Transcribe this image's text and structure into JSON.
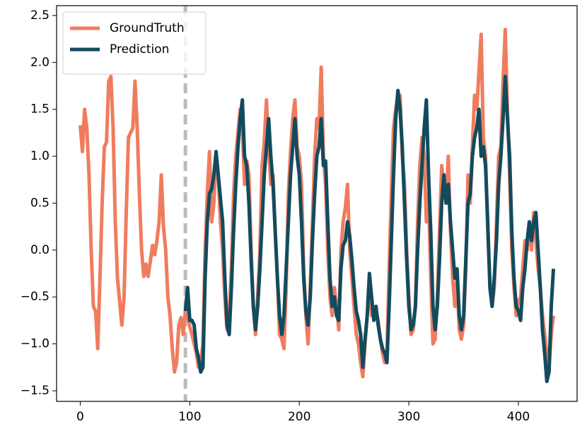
{
  "chart_data": {
    "type": "line",
    "x": [
      0,
      2,
      4,
      6,
      8,
      10,
      12,
      14,
      16,
      18,
      20,
      22,
      24,
      26,
      28,
      30,
      32,
      34,
      36,
      38,
      40,
      42,
      44,
      46,
      48,
      50,
      52,
      54,
      56,
      58,
      60,
      62,
      64,
      66,
      68,
      70,
      72,
      74,
      76,
      78,
      80,
      82,
      84,
      86,
      88,
      90,
      92,
      94,
      96,
      98,
      100,
      102,
      104,
      106,
      108,
      110,
      112,
      114,
      116,
      118,
      120,
      122,
      124,
      126,
      128,
      130,
      132,
      134,
      136,
      138,
      140,
      142,
      144,
      146,
      148,
      150,
      152,
      154,
      156,
      158,
      160,
      162,
      164,
      166,
      168,
      170,
      172,
      174,
      176,
      178,
      180,
      182,
      184,
      186,
      188,
      190,
      192,
      194,
      196,
      198,
      200,
      202,
      204,
      206,
      208,
      210,
      212,
      214,
      216,
      218,
      220,
      222,
      224,
      226,
      228,
      230,
      232,
      234,
      236,
      238,
      240,
      242,
      244,
      246,
      248,
      250,
      252,
      254,
      256,
      258,
      260,
      262,
      264,
      266,
      268,
      270,
      272,
      274,
      276,
      278,
      280,
      282,
      284,
      286,
      288,
      290,
      292,
      294,
      296,
      298,
      300,
      302,
      304,
      306,
      308,
      310,
      312,
      314,
      316,
      318,
      320,
      322,
      324,
      326,
      328,
      330,
      332,
      334,
      336,
      338,
      340,
      342,
      344,
      346,
      348,
      350,
      352,
      354,
      356,
      358,
      360,
      362,
      364,
      366,
      368,
      370,
      372,
      374,
      376,
      378,
      380,
      382,
      384,
      386,
      388,
      390,
      392,
      394,
      396,
      398,
      400,
      402,
      404,
      406,
      408,
      410,
      412,
      414,
      416,
      418,
      420,
      422,
      424,
      426,
      428,
      430,
      432
    ],
    "series": [
      {
        "name": "GroundTruth",
        "color": "#f07c5e",
        "values": [
          1.33,
          1.05,
          1.5,
          1.3,
          0.8,
          0.0,
          -0.6,
          -0.65,
          -1.05,
          -0.3,
          0.5,
          1.1,
          1.15,
          1.8,
          1.85,
          1.3,
          0.3,
          -0.3,
          -0.55,
          -0.8,
          -0.5,
          0.4,
          1.2,
          1.25,
          1.3,
          1.8,
          1.3,
          0.6,
          0.0,
          -0.28,
          -0.15,
          -0.28,
          -0.12,
          0.05,
          -0.05,
          0.1,
          0.3,
          0.8,
          0.25,
          0.0,
          -0.5,
          -0.7,
          -1.05,
          -1.3,
          -1.2,
          -0.8,
          -0.72,
          -0.9,
          -0.65,
          -0.7,
          -0.82,
          -0.9,
          -1.0,
          -1.1,
          -1.25,
          -1.2,
          -1.0,
          0.0,
          0.6,
          1.05,
          0.3,
          0.5,
          1.0,
          0.8,
          0.3,
          0.0,
          -0.5,
          -0.85,
          -0.7,
          -0.2,
          0.6,
          1.0,
          1.25,
          1.5,
          1.3,
          0.7,
          0.95,
          0.8,
          0.0,
          -0.6,
          -0.9,
          -0.5,
          0.0,
          0.9,
          1.15,
          1.6,
          1.1,
          0.7,
          0.8,
          0.2,
          -0.3,
          -0.9,
          -0.95,
          -1.05,
          -0.4,
          0.6,
          1.05,
          1.4,
          1.6,
          1.1,
          1.0,
          0.7,
          -0.2,
          -0.7,
          -1.0,
          -0.4,
          0.3,
          1.0,
          1.4,
          1.3,
          1.95,
          1.0,
          0.7,
          0.0,
          -0.5,
          -0.7,
          -0.4,
          -0.6,
          -0.85,
          0.0,
          0.3,
          0.45,
          0.7,
          0.0,
          -0.3,
          -0.6,
          -0.9,
          -1.0,
          -1.2,
          -1.35,
          -1.0,
          -0.7,
          -0.3,
          -0.7,
          -0.7,
          -0.65,
          -0.75,
          -0.95,
          -1.1,
          -1.2,
          -1.1,
          -0.2,
          0.6,
          1.3,
          1.5,
          1.65,
          1.65,
          1.0,
          0.7,
          0.0,
          -0.5,
          -0.9,
          -0.85,
          -0.6,
          0.3,
          0.9,
          1.2,
          1.0,
          0.3,
          0.6,
          -0.3,
          -1.0,
          -0.95,
          -0.5,
          0.2,
          0.9,
          0.7,
          0.5,
          1.0,
          0.2,
          -0.3,
          -0.6,
          -0.3,
          -0.85,
          -0.95,
          -0.8,
          -0.2,
          0.8,
          0.5,
          1.1,
          1.65,
          1.5,
          1.9,
          2.3,
          1.2,
          1.0,
          0.2,
          -0.3,
          -0.6,
          -0.4,
          0.3,
          1.0,
          1.1,
          1.8,
          2.35,
          1.5,
          0.8,
          0.0,
          -0.4,
          -0.7,
          -0.55,
          -0.5,
          -0.2,
          0.1,
          0.0,
          0.3,
          0.0,
          0.4,
          0.1,
          -0.2,
          -0.4,
          -0.7,
          -0.9,
          -1.1,
          -1.25,
          -0.9,
          -0.7
        ]
      },
      {
        "name": "Prediction",
        "color": "#124b5e",
        "values": [
          null,
          null,
          null,
          null,
          null,
          null,
          null,
          null,
          null,
          null,
          null,
          null,
          null,
          null,
          null,
          null,
          null,
          null,
          null,
          null,
          null,
          null,
          null,
          null,
          null,
          null,
          null,
          null,
          null,
          null,
          null,
          null,
          null,
          null,
          null,
          null,
          null,
          null,
          null,
          null,
          null,
          null,
          null,
          null,
          null,
          null,
          null,
          null,
          -0.65,
          -0.4,
          -0.75,
          -0.75,
          -0.8,
          -1.05,
          -1.15,
          -1.3,
          -1.25,
          -0.3,
          0.3,
          0.6,
          0.65,
          0.8,
          1.05,
          0.8,
          0.55,
          0.3,
          -0.3,
          -0.8,
          -0.9,
          -0.4,
          0.2,
          0.7,
          1.1,
          1.4,
          1.6,
          1.0,
          0.9,
          0.5,
          -0.1,
          -0.6,
          -0.85,
          -0.6,
          -0.2,
          0.3,
          0.8,
          1.1,
          1.4,
          1.0,
          0.7,
          0.2,
          -0.3,
          -0.7,
          -0.9,
          -0.7,
          -0.2,
          0.3,
          0.8,
          1.1,
          1.4,
          1.0,
          0.8,
          0.3,
          -0.3,
          -0.65,
          -0.8,
          -0.5,
          0.1,
          0.6,
          1.0,
          1.1,
          1.4,
          0.9,
          0.95,
          0.3,
          -0.3,
          -0.6,
          -0.5,
          -0.7,
          -0.75,
          -0.2,
          0.05,
          0.1,
          0.3,
          0.15,
          -0.1,
          -0.4,
          -0.65,
          -0.75,
          -0.9,
          -1.25,
          -0.95,
          -0.7,
          -0.25,
          -0.5,
          -0.75,
          -0.6,
          -0.8,
          -0.95,
          -1.05,
          -1.1,
          -1.2,
          -0.6,
          0.1,
          0.8,
          1.4,
          1.7,
          1.5,
          1.1,
          0.5,
          -0.1,
          -0.6,
          -0.85,
          -0.8,
          -0.6,
          0.0,
          0.5,
          0.9,
          1.3,
          1.6,
          0.8,
          0.2,
          -0.6,
          -0.85,
          -0.6,
          -0.1,
          0.5,
          0.8,
          0.5,
          0.7,
          0.3,
          0.0,
          -0.3,
          -0.2,
          -0.7,
          -0.85,
          -0.7,
          -0.1,
          0.5,
          0.6,
          1.0,
          1.2,
          1.3,
          1.5,
          1.0,
          1.1,
          0.9,
          0.3,
          -0.4,
          -0.6,
          -0.3,
          0.1,
          0.7,
          1.0,
          1.4,
          1.85,
          1.4,
          1.0,
          0.2,
          -0.3,
          -0.6,
          -0.65,
          -0.75,
          -0.4,
          -0.2,
          0.1,
          0.3,
          0.1,
          0.3,
          0.4,
          0.0,
          -0.4,
          -0.85,
          -1.1,
          -1.4,
          -1.3,
          -0.6,
          -0.2
        ]
      }
    ],
    "vlines": [
      96
    ],
    "vline_color": "#bbbbbb",
    "xlim": [
      -21.6,
      453.6
    ],
    "ylim": [
      -1.613,
      2.605
    ],
    "xticks": [
      0,
      100,
      200,
      300,
      400
    ],
    "yticks": [
      {
        "value": -1.5,
        "label": "−1.5"
      },
      {
        "value": -1.0,
        "label": "−1.0"
      },
      {
        "value": -0.5,
        "label": "−0.5"
      },
      {
        "value": 0,
        "label": "0.0"
      },
      {
        "value": 0.5,
        "label": "0.5"
      },
      {
        "value": 1.0,
        "label": "1.0"
      },
      {
        "value": 1.5,
        "label": "1.5"
      },
      {
        "value": 2.0,
        "label": "2.0"
      },
      {
        "value": 2.5,
        "label": "2.5"
      }
    ],
    "legend": "upper left"
  }
}
